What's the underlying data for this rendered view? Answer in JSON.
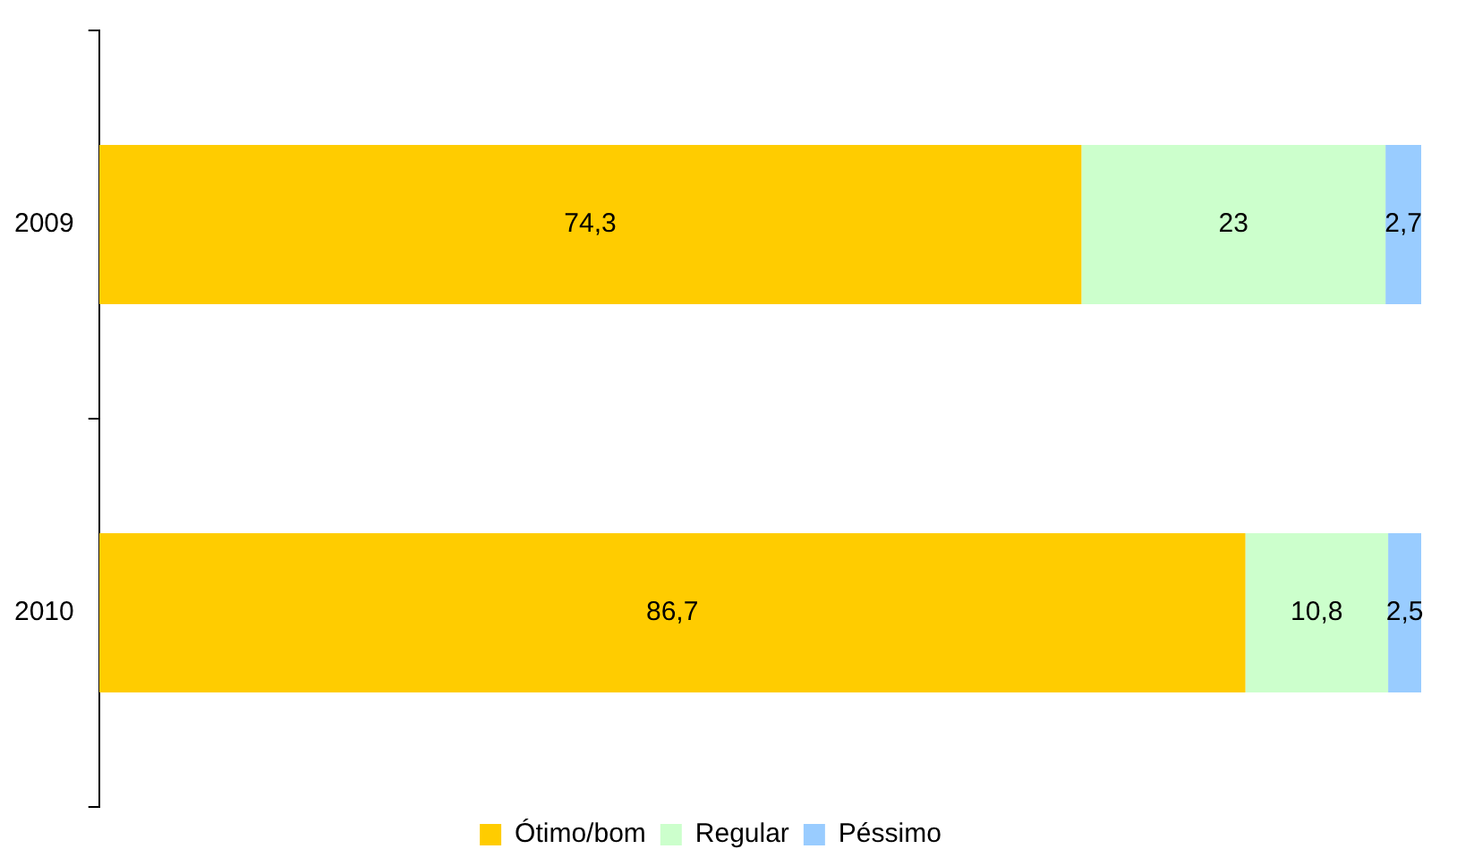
{
  "chart_data": {
    "type": "bar",
    "orientation": "horizontal",
    "stacked": true,
    "categories": [
      "2009",
      "2010"
    ],
    "series": [
      {
        "name": "Ótimo/bom",
        "color": "#ffcc00",
        "values": [
          74.3,
          86.7
        ],
        "value_labels": [
          "74,3",
          "86,7"
        ]
      },
      {
        "name": "Regular",
        "color": "#ccffcc",
        "values": [
          23,
          10.8
        ],
        "value_labels": [
          "23",
          "10,8"
        ]
      },
      {
        "name": "Péssimo",
        "color": "#99ccff",
        "values": [
          2.7,
          2.5
        ],
        "value_labels": [
          "2,7",
          "2,5"
        ]
      }
    ],
    "xlim": [
      0,
      100
    ],
    "tick_labels": "y",
    "grid": false,
    "legend": "bottom"
  }
}
